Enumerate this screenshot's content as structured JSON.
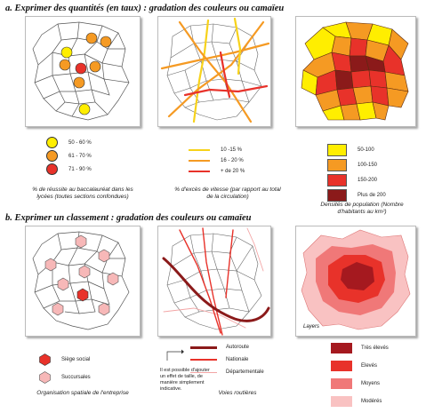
{
  "section_a": {
    "title": "a.   Exprimer des quantités (en taux) : gradation des couleurs ou camaïeu",
    "legend1": {
      "items": [
        {
          "label": "50 - 60 %",
          "color": "#ffee00"
        },
        {
          "label": "61 - 70 %",
          "color": "#f59a23"
        },
        {
          "label": "71 - 90 %",
          "color": "#e8322a"
        }
      ],
      "caption": "% de réussite au baccalauréat dans les lycées (toutes sections confondues)"
    },
    "legend2": {
      "items": [
        {
          "label": "10 -15 %",
          "color": "#f7d21a"
        },
        {
          "label": "16 - 20 %",
          "color": "#f59a23"
        },
        {
          "label": "+ de 20 %",
          "color": "#e8322a"
        }
      ],
      "caption": "% d'excès de vitesse (par rapport au total de la circulation)"
    },
    "legend3": {
      "items": [
        {
          "label": "50-100",
          "color": "#ffee00"
        },
        {
          "label": "100-150",
          "color": "#f59a23"
        },
        {
          "label": "150-200",
          "color": "#e8322a"
        },
        {
          "label": "Plus de 200",
          "color": "#8b1a1a"
        }
      ],
      "caption": "Densités de population (Nombre d'habitants au km²)"
    }
  },
  "section_b": {
    "title": "b.   Exprimer un classement : gradation des couleurs ou camaïeu",
    "legend1": {
      "items": [
        {
          "label": "Siège social",
          "color": "#e8322a"
        },
        {
          "label": "Succursales",
          "color": "#f7b8b8"
        }
      ],
      "caption": "Organisation spatiale de l'entreprise"
    },
    "legend2": {
      "items": [
        {
          "label": "Autoroute",
          "color": "#8b1a1a"
        },
        {
          "label": "Nationale",
          "color": "#e8322a"
        },
        {
          "label": "Départementale",
          "color": "#f3a5a5"
        }
      ],
      "caption": "Voies routières",
      "note": "Il est possible d'ajouter un effet de taille, de manière simplement indicative."
    },
    "legend3": {
      "layers_label": "Layers",
      "items": [
        {
          "label": "Très élevés",
          "color": "#a5191f"
        },
        {
          "label": "Elevés",
          "color": "#e8322a"
        },
        {
          "label": "Moyens",
          "color": "#f07878"
        },
        {
          "label": "Modérés",
          "color": "#f9c2c2"
        }
      ]
    }
  }
}
